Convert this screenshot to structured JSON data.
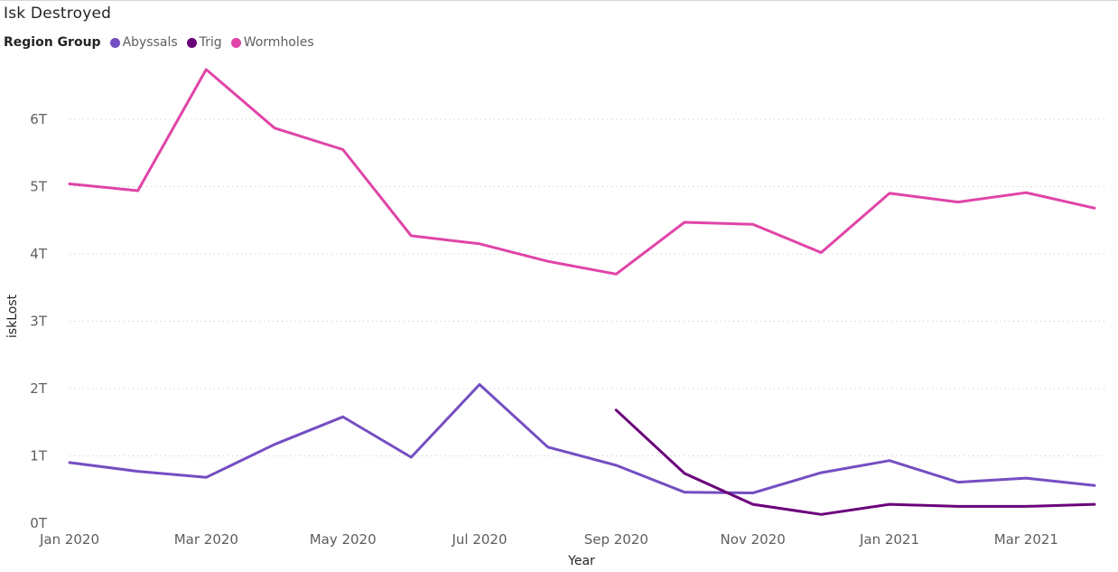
{
  "chart_data": {
    "type": "line",
    "title": "Isk Destroyed",
    "legend": {
      "title": "Region Group",
      "placement": "top-left"
    },
    "xlabel": "Year",
    "ylabel": "iskLost",
    "ylim": [
      0,
      6.7
    ],
    "yticks": [
      "0T",
      "1T",
      "2T",
      "3T",
      "4T",
      "5T",
      "6T"
    ],
    "ytick_values": [
      0,
      1,
      2,
      3,
      4,
      5,
      6
    ],
    "xticks": [
      "Jan 2020",
      "Mar 2020",
      "May 2020",
      "Jul 2020",
      "Sep 2020",
      "Nov 2020",
      "Jan 2021",
      "Mar 2021"
    ],
    "xtick_positions": [
      0,
      2,
      4,
      6,
      8,
      10,
      12,
      14
    ],
    "categories": [
      "Jan 2020",
      "Feb 2020",
      "Mar 2020",
      "Apr 2020",
      "May 2020",
      "Jun 2020",
      "Jul 2020",
      "Aug 2020",
      "Sep 2020",
      "Oct 2020",
      "Nov 2020",
      "Dec 2020",
      "Jan 2021",
      "Feb 2021",
      "Mar 2021",
      "Apr 2021"
    ],
    "grid": true,
    "series": [
      {
        "name": "Abyssals",
        "color": "#744EC2",
        "values": [
          0.9,
          0.77,
          0.68,
          1.17,
          1.58,
          0.98,
          2.06,
          1.13,
          0.86,
          0.46,
          0.45,
          0.75,
          0.93,
          0.61,
          0.67,
          0.56
        ]
      },
      {
        "name": "Trig",
        "color": "#6B007B",
        "values": [
          null,
          null,
          null,
          null,
          null,
          null,
          null,
          null,
          1.68,
          0.74,
          0.28,
          0.13,
          0.28,
          0.25,
          0.25,
          0.28
        ]
      },
      {
        "name": "Wormholes",
        "color": "#E044A7",
        "values": [
          5.04,
          4.94,
          6.74,
          5.87,
          5.55,
          4.27,
          4.15,
          3.89,
          3.7,
          4.47,
          4.44,
          4.02,
          4.9,
          4.77,
          4.91,
          4.68
        ]
      }
    ]
  }
}
